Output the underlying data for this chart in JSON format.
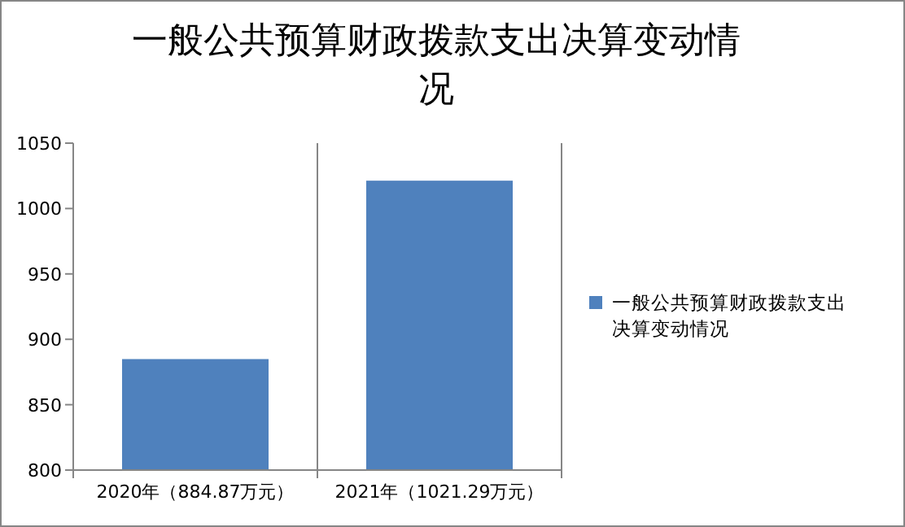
{
  "chart_data": {
    "type": "bar",
    "title": "一般公共预算财政拨款支出决算变动情况",
    "categories": [
      "2020年（884.87万元）",
      "2021年（1021.29万元）"
    ],
    "series": [
      {
        "name": "一般公共预算财政拨款支出决算变动情况",
        "color": "#4f81bd",
        "values": [
          884.87,
          1021.29
        ]
      }
    ],
    "ylim": [
      800,
      1050
    ],
    "yticks": [
      800,
      850,
      900,
      950,
      1000,
      1050
    ],
    "grid": "x",
    "legend": "right"
  }
}
